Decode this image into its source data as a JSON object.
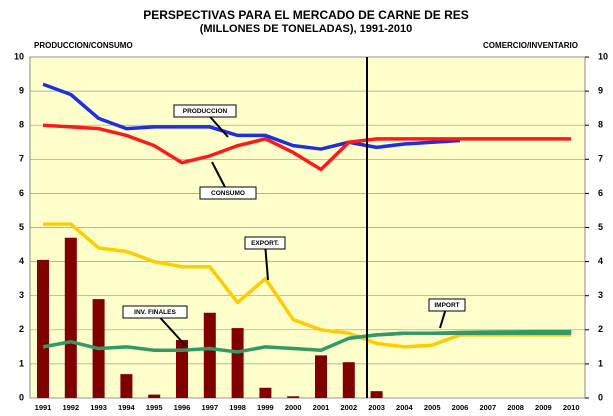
{
  "chart_data": {
    "type": "bar_line",
    "title": "PERSPECTIVAS PARA EL MERCADO DE CARNE DE RES",
    "subtitle": "(MILLONES DE TONELADAS), 1991-2010",
    "y_label": "PRODUCCION/CONSUMO",
    "y2_label": "COMERCIO/INVENTARIO",
    "categories": [
      "1991",
      "1992",
      "1993",
      "1994",
      "1995",
      "1996",
      "1997",
      "1998",
      "1999",
      "2000",
      "2001",
      "2002",
      "2003",
      "2004",
      "2005",
      "2006",
      "2007",
      "2008",
      "2009",
      "2010"
    ],
    "ylim": [
      0,
      10
    ],
    "yticks": [
      0,
      1,
      2,
      3,
      4,
      5,
      6,
      7,
      8,
      9,
      10
    ],
    "y2lim": [
      0,
      10
    ],
    "y2ticks": [
      0,
      1,
      2,
      3,
      4,
      5,
      6,
      7,
      8,
      9,
      10
    ],
    "grid": true,
    "series": [
      {
        "type": "bar",
        "color": "#800000",
        "axis": "y2",
        "values": [
          4.05,
          4.7,
          2.9,
          0.7,
          0.1,
          1.7,
          2.5,
          2.05,
          0.3,
          0.05,
          1.25,
          1.05,
          0.2,
          null,
          null,
          null,
          null,
          null,
          null,
          null
        ]
      },
      {
        "type": "line",
        "color": "#1f2fe0",
        "values": [
          9.2,
          8.9,
          8.2,
          7.9,
          7.95,
          7.95,
          7.95,
          7.7,
          7.7,
          7.4,
          7.3,
          7.5,
          7.35,
          7.45,
          7.5,
          7.55,
          null,
          null,
          null,
          null
        ]
      },
      {
        "type": "line",
        "color": "#ff1a1a",
        "values": [
          8.0,
          7.95,
          7.9,
          7.7,
          7.4,
          6.9,
          7.1,
          7.4,
          7.6,
          7.2,
          6.7,
          7.5,
          7.6,
          7.6,
          7.6,
          7.6,
          7.6,
          7.6,
          7.6,
          7.6
        ]
      },
      {
        "type": "line",
        "color": "#ffcc00",
        "axis": "y2",
        "values": [
          5.1,
          5.1,
          4.4,
          4.3,
          4.0,
          3.85,
          3.85,
          2.8,
          3.5,
          2.3,
          2.0,
          1.9,
          1.6,
          1.5,
          1.55,
          1.85,
          1.85,
          1.85,
          1.85,
          1.85
        ]
      },
      {
        "type": "line",
        "color": "#339966",
        "axis": "y2",
        "values": [
          1.5,
          1.65,
          1.45,
          1.5,
          1.4,
          1.4,
          1.45,
          1.35,
          1.5,
          1.45,
          1.4,
          1.75,
          1.85,
          1.9,
          1.9,
          1.9,
          1.9,
          1.9,
          1.9,
          1.9
        ]
      },
      {
        "type": "line",
        "color": "#339966",
        "axis": "y2",
        "values": [
          null,
          null,
          null,
          null,
          null,
          null,
          null,
          null,
          null,
          null,
          null,
          1.75,
          1.85,
          1.9,
          1.9,
          1.92,
          1.93,
          1.94,
          1.95,
          1.95
        ]
      }
    ],
    "annotations": [
      "PRODUCCION",
      "CONSUMO",
      "EXPORT.",
      "INV. FINALES",
      "IMPORT"
    ]
  }
}
